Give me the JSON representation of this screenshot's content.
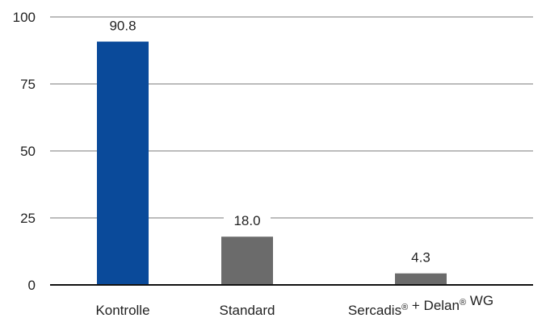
{
  "chart_data": {
    "type": "bar",
    "title": "",
    "xlabel": "",
    "ylabel": "",
    "categories": [
      "Kontrolle",
      "Standard",
      "Sercadis® + Delan® WG"
    ],
    "values": [
      90.8,
      18.0,
      4.3
    ],
    "value_labels": [
      "90.8",
      "18.0",
      "4.3"
    ],
    "bar_colors": [
      "#0a4a9a",
      "#6b6b6b",
      "#6b6b6b"
    ],
    "ylim": [
      0,
      100
    ],
    "yticks": [
      0,
      25,
      50,
      75,
      100
    ],
    "ytick_labels": [
      "0",
      "25",
      "50",
      "75",
      "100"
    ],
    "grid": true
  }
}
